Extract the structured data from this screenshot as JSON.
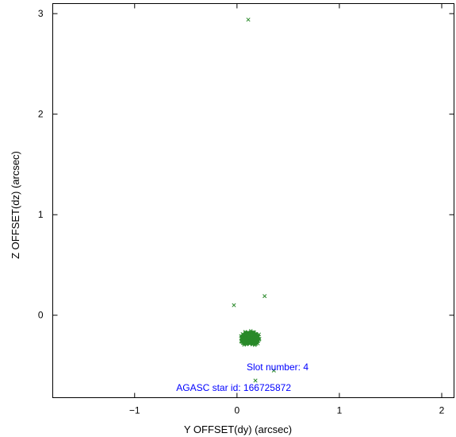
{
  "chart_data": {
    "type": "scatter",
    "title": "",
    "xlabel": "Y OFFSET(dy) (arcsec)",
    "ylabel": "Z OFFSET(dz) (arcsec)",
    "xlim": [
      -1.8,
      2.12
    ],
    "ylim": [
      -0.82,
      3.1
    ],
    "x_ticks": [
      -1,
      0,
      1,
      2
    ],
    "x_tick_labels": [
      "−1",
      "0",
      "1",
      "2"
    ],
    "y_ticks": [
      0,
      1,
      2,
      3
    ],
    "y_tick_labels": [
      "0",
      "1",
      "2",
      "3"
    ],
    "grid": false,
    "marker": "x",
    "series_color": "#2a8a2a",
    "outliers": [
      {
        "x": 0.11,
        "y": 2.94
      },
      {
        "x": -0.03,
        "y": 0.1
      },
      {
        "x": 0.27,
        "y": 0.19
      },
      {
        "x": 0.36,
        "y": -0.55
      },
      {
        "x": 0.18,
        "y": -0.65
      }
    ],
    "cluster": {
      "center": [
        0.13,
        -0.23
      ],
      "spread": [
        0.11,
        0.08
      ],
      "approx_points": 900
    },
    "annotations": [
      {
        "text": "Slot number: 4",
        "color": "#0000ff"
      },
      {
        "text": "AGASC star id: 166725872",
        "color": "#0000ff"
      }
    ]
  }
}
